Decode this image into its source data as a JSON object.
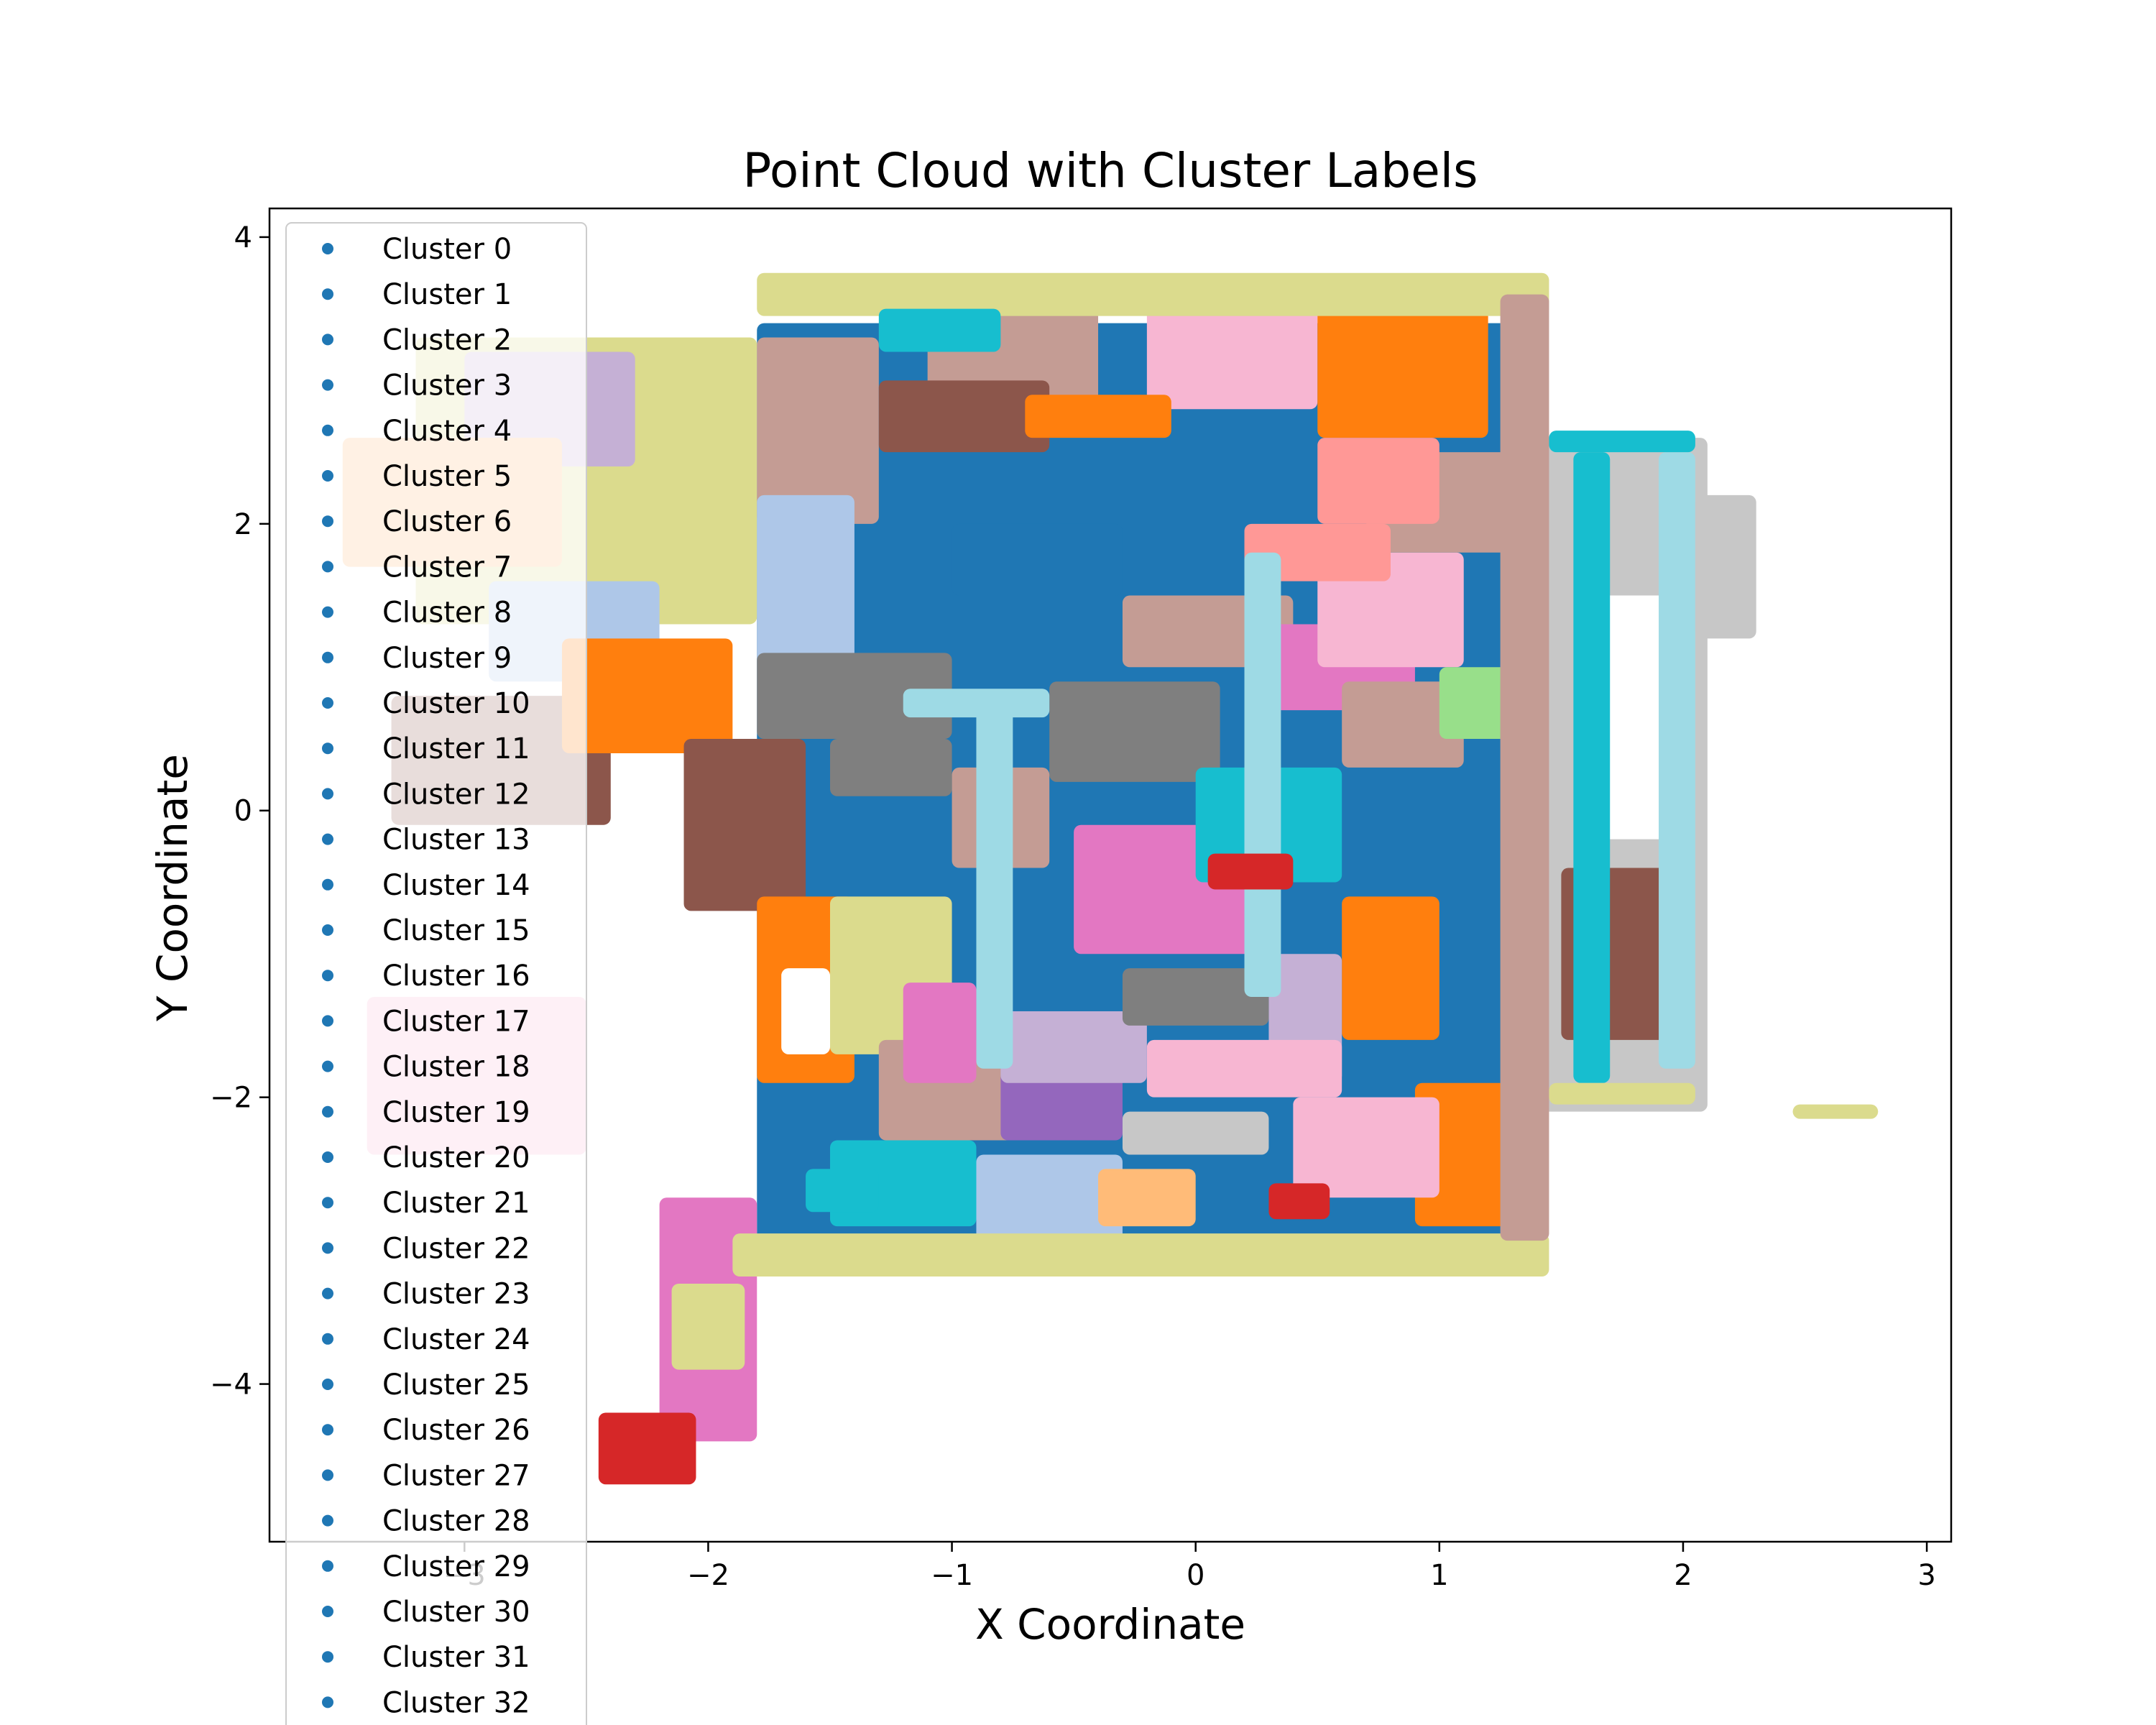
{
  "chart_data": {
    "type": "scatter",
    "title": "Point Cloud with Cluster Labels",
    "xlabel": "X Coordinate",
    "ylabel": "Y Coordinate",
    "xlim": [
      -3.8,
      3.1
    ],
    "ylim": [
      -5.1,
      4.2
    ],
    "xticks": [
      -3,
      -2,
      -1,
      0,
      1,
      2,
      3
    ],
    "yticks": [
      -4,
      -2,
      0,
      2,
      4
    ],
    "grid": false,
    "legend": {
      "placement": "top-left",
      "marker_color": "#1f77b4",
      "entries": [
        "Cluster 0",
        "Cluster 1",
        "Cluster 2",
        "Cluster 3",
        "Cluster 4",
        "Cluster 5",
        "Cluster 6",
        "Cluster 7",
        "Cluster 8",
        "Cluster 9",
        "Cluster 10",
        "Cluster 11",
        "Cluster 12",
        "Cluster 13",
        "Cluster 14",
        "Cluster 15",
        "Cluster 16",
        "Cluster 17",
        "Cluster 18",
        "Cluster 19",
        "Cluster 20",
        "Cluster 21",
        "Cluster 22",
        "Cluster 23",
        "Cluster 24",
        "Cluster 25",
        "Cluster 26",
        "Cluster 27",
        "Cluster 28",
        "Cluster 29",
        "Cluster 30",
        "Cluster 31",
        "Cluster 32"
      ]
    },
    "palette": [
      "#1f77b4",
      "#aec7e8",
      "#ff7f0e",
      "#ffbb78",
      "#2ca02c",
      "#98df8a",
      "#d62728",
      "#ff9896",
      "#9467bd",
      "#c5b0d5",
      "#8c564b",
      "#c49c94",
      "#e377c2",
      "#f7b6d2",
      "#7f7f7f",
      "#c7c7c7",
      "#bcbd22",
      "#dbdb8d",
      "#17becf",
      "#9edae5"
    ],
    "regions": [
      {
        "shape": "rect",
        "x": [
          -1.8,
          1.4
        ],
        "y": [
          -3.1,
          3.4
        ],
        "color": "#1f77b4"
      },
      {
        "shape": "rect",
        "x": [
          -3.2,
          -1.8
        ],
        "y": [
          1.3,
          3.3
        ],
        "color": "#dbdb8d"
      },
      {
        "shape": "rect",
        "x": [
          -3.0,
          -2.3
        ],
        "y": [
          2.4,
          3.2
        ],
        "color": "#c5b0d5"
      },
      {
        "shape": "rect",
        "x": [
          -3.5,
          -2.6
        ],
        "y": [
          1.7,
          2.6
        ],
        "color": "#ffbb78"
      },
      {
        "shape": "rect",
        "x": [
          -2.9,
          -2.2
        ],
        "y": [
          0.9,
          1.6
        ],
        "color": "#aec7e8"
      },
      {
        "shape": "rect",
        "x": [
          -3.3,
          -2.4
        ],
        "y": [
          -0.1,
          0.8
        ],
        "color": "#8c564b"
      },
      {
        "shape": "rect",
        "x": [
          -2.6,
          -1.9
        ],
        "y": [
          0.4,
          1.2
        ],
        "color": "#ff7f0e"
      },
      {
        "shape": "rect",
        "x": [
          -3.4,
          -2.5
        ],
        "y": [
          -2.4,
          -1.3
        ],
        "color": "#f7b6d2"
      },
      {
        "shape": "rect",
        "x": [
          -2.2,
          -1.8
        ],
        "y": [
          -4.4,
          -2.7
        ],
        "color": "#e377c2"
      },
      {
        "shape": "rect",
        "x": [
          -2.15,
          -1.85
        ],
        "y": [
          -3.9,
          -3.3
        ],
        "color": "#dbdb8d"
      },
      {
        "shape": "rect",
        "x": [
          -2.45,
          -2.05
        ],
        "y": [
          -4.7,
          -4.2
        ],
        "color": "#d62728"
      },
      {
        "shape": "rect",
        "x": [
          1.4,
          2.1
        ],
        "y": [
          -2.1,
          2.6
        ],
        "color": "#c7c7c7"
      },
      {
        "shape": "rect",
        "x": [
          1.5,
          2.0
        ],
        "y": [
          -1.6,
          -0.4
        ],
        "color": "#8c564b"
      },
      {
        "shape": "rect",
        "x": [
          1.6,
          2.0
        ],
        "y": [
          0.4,
          1.5
        ],
        "color": "#ffffff"
      },
      {
        "shape": "rect",
        "x": [
          1.6,
          2.0
        ],
        "y": [
          -0.2,
          0.6
        ],
        "color": "#ffffff"
      },
      {
        "shape": "rect",
        "x": [
          2.45,
          2.8
        ],
        "y": [
          -2.15,
          -2.05
        ],
        "color": "#dbdb8d"
      },
      {
        "shape": "rect",
        "x": [
          -1.1,
          -0.4
        ],
        "y": [
          2.8,
          3.5
        ],
        "color": "#c49c94"
      },
      {
        "shape": "rect",
        "x": [
          -0.2,
          0.5
        ],
        "y": [
          2.8,
          3.5
        ],
        "color": "#f7b6d2"
      },
      {
        "shape": "rect",
        "x": [
          0.5,
          1.2
        ],
        "y": [
          2.6,
          3.5
        ],
        "color": "#ff7f0e"
      },
      {
        "shape": "rect",
        "x": [
          -1.8,
          -1.3
        ],
        "y": [
          2.0,
          3.3
        ],
        "color": "#c49c94"
      },
      {
        "shape": "rect",
        "x": [
          -1.8,
          -1.4
        ],
        "y": [
          1.0,
          2.2
        ],
        "color": "#aec7e8"
      },
      {
        "shape": "rect",
        "x": [
          -1.8,
          -1.0
        ],
        "y": [
          0.5,
          1.1
        ],
        "color": "#7f7f7f"
      },
      {
        "shape": "rect",
        "x": [
          -2.1,
          -1.6
        ],
        "y": [
          -0.7,
          0.5
        ],
        "color": "#8c564b"
      },
      {
        "shape": "rect",
        "x": [
          -1.8,
          -1.4
        ],
        "y": [
          -1.9,
          -0.6
        ],
        "color": "#ff7f0e"
      },
      {
        "shape": "rect",
        "x": [
          -1.5,
          -1.0
        ],
        "y": [
          -1.7,
          -0.6
        ],
        "color": "#dbdb8d"
      },
      {
        "shape": "rect",
        "x": [
          -1.3,
          -0.7
        ],
        "y": [
          -2.3,
          -1.6
        ],
        "color": "#c49c94"
      },
      {
        "shape": "rect",
        "x": [
          -1.5,
          -0.9
        ],
        "y": [
          -2.9,
          -2.3
        ],
        "color": "#17becf"
      },
      {
        "shape": "rect",
        "x": [
          -0.9,
          -0.3
        ],
        "y": [
          -3.0,
          -2.4
        ],
        "color": "#aec7e8"
      },
      {
        "shape": "rect",
        "x": [
          -0.8,
          -0.3
        ],
        "y": [
          -2.3,
          -1.8
        ],
        "color": "#9467bd"
      },
      {
        "shape": "rect",
        "x": [
          -0.5,
          0.3
        ],
        "y": [
          -1.0,
          -0.1
        ],
        "color": "#e377c2"
      },
      {
        "shape": "rect",
        "x": [
          -0.6,
          0.1
        ],
        "y": [
          0.2,
          0.9
        ],
        "color": "#7f7f7f"
      },
      {
        "shape": "rect",
        "x": [
          -0.3,
          0.4
        ],
        "y": [
          1.0,
          1.5
        ],
        "color": "#c49c94"
      },
      {
        "shape": "rect",
        "x": [
          0.0,
          0.6
        ],
        "y": [
          -0.5,
          0.3
        ],
        "color": "#17becf"
      },
      {
        "shape": "rect",
        "x": [
          0.3,
          0.9
        ],
        "y": [
          0.7,
          1.3
        ],
        "color": "#e377c2"
      },
      {
        "shape": "rect",
        "x": [
          0.5,
          1.1
        ],
        "y": [
          1.0,
          1.8
        ],
        "color": "#f7b6d2"
      },
      {
        "shape": "rect",
        "x": [
          0.7,
          1.3
        ],
        "y": [
          1.8,
          2.5
        ],
        "color": "#c49c94"
      },
      {
        "shape": "rect",
        "x": [
          0.5,
          1.0
        ],
        "y": [
          2.0,
          2.6
        ],
        "color": "#ff9896"
      },
      {
        "shape": "rect",
        "x": [
          0.6,
          1.1
        ],
        "y": [
          0.3,
          0.9
        ],
        "color": "#c49c94"
      },
      {
        "shape": "rect",
        "x": [
          1.0,
          1.3
        ],
        "y": [
          0.5,
          1.0
        ],
        "color": "#98df8a"
      },
      {
        "shape": "rect",
        "x": [
          0.6,
          1.0
        ],
        "y": [
          -1.6,
          -0.6
        ],
        "color": "#ff7f0e"
      },
      {
        "shape": "rect",
        "x": [
          0.3,
          0.6
        ],
        "y": [
          -1.9,
          -1.0
        ],
        "color": "#c5b0d5"
      },
      {
        "shape": "rect",
        "x": [
          0.9,
          1.3
        ],
        "y": [
          -2.9,
          -1.9
        ],
        "color": "#ff7f0e"
      },
      {
        "shape": "rect",
        "x": [
          0.4,
          1.0
        ],
        "y": [
          -2.7,
          -2.0
        ],
        "color": "#f7b6d2"
      },
      {
        "shape": "rect",
        "x": [
          -0.2,
          0.6
        ],
        "y": [
          -2.0,
          -1.6
        ],
        "color": "#f7b6d2"
      },
      {
        "shape": "rect",
        "x": [
          -0.4,
          0.0
        ],
        "y": [
          -2.9,
          -2.5
        ],
        "color": "#ffbb78"
      },
      {
        "shape": "rect",
        "x": [
          -1.0,
          -0.3
        ],
        "y": [
          1.5,
          2.0
        ],
        "color": "#1f77b4"
      },
      {
        "shape": "rect",
        "x": [
          -1.3,
          -0.6
        ],
        "y": [
          2.5,
          3.0
        ],
        "color": "#8c564b"
      },
      {
        "shape": "rect",
        "x": [
          0.2,
          0.8
        ],
        "y": [
          1.6,
          2.0
        ],
        "color": "#ff9896"
      },
      {
        "shape": "rect",
        "x": [
          -1.0,
          -0.6
        ],
        "y": [
          -0.4,
          0.3
        ],
        "color": "#c49c94"
      },
      {
        "shape": "rect",
        "x": [
          -0.8,
          -0.2
        ],
        "y": [
          -1.9,
          -1.4
        ],
        "color": "#c5b0d5"
      },
      {
        "shape": "rect",
        "x": [
          -0.3,
          0.3
        ],
        "y": [
          -1.5,
          -1.1
        ],
        "color": "#7f7f7f"
      },
      {
        "shape": "rect",
        "x": [
          -1.5,
          -1.0
        ],
        "y": [
          0.1,
          0.5
        ],
        "color": "#7f7f7f"
      },
      {
        "shape": "rect",
        "x": [
          -1.9,
          1.45
        ],
        "y": [
          -3.25,
          -2.95
        ],
        "color": "#dbdb8d"
      },
      {
        "shape": "rect",
        "x": [
          -1.8,
          1.45
        ],
        "y": [
          3.45,
          3.75
        ],
        "color": "#dbdb8d"
      },
      {
        "shape": "rect",
        "x": [
          1.25,
          1.45
        ],
        "y": [
          -3.0,
          3.6
        ],
        "color": "#c49c94"
      },
      {
        "shape": "rect",
        "x": [
          -1.3,
          -0.8
        ],
        "y": [
          3.2,
          3.5
        ],
        "color": "#17becf"
      },
      {
        "shape": "rect",
        "x": [
          -0.7,
          -0.1
        ],
        "y": [
          2.6,
          2.9
        ],
        "color": "#ff7f0e"
      },
      {
        "shape": "rect",
        "x": [
          -1.2,
          -0.6
        ],
        "y": [
          0.65,
          0.85
        ],
        "color": "#9edae5"
      },
      {
        "shape": "rect",
        "x": [
          -0.9,
          -0.75
        ],
        "y": [
          -1.8,
          0.7
        ],
        "color": "#9edae5"
      },
      {
        "shape": "rect",
        "x": [
          0.2,
          0.35
        ],
        "y": [
          -1.3,
          1.8
        ],
        "color": "#9edae5"
      },
      {
        "shape": "rect",
        "x": [
          1.55,
          1.7
        ],
        "y": [
          -1.9,
          2.5
        ],
        "color": "#17becf"
      },
      {
        "shape": "rect",
        "x": [
          1.9,
          2.05
        ],
        "y": [
          -1.8,
          2.5
        ],
        "color": "#9edae5"
      },
      {
        "shape": "rect",
        "x": [
          1.45,
          2.05
        ],
        "y": [
          2.5,
          2.65
        ],
        "color": "#17becf"
      },
      {
        "shape": "rect",
        "x": [
          1.45,
          2.05
        ],
        "y": [
          -2.05,
          -1.9
        ],
        "color": "#dbdb8d"
      },
      {
        "shape": "rect",
        "x": [
          2.05,
          2.3
        ],
        "y": [
          1.2,
          2.2
        ],
        "color": "#c7c7c7"
      },
      {
        "shape": "rect",
        "x": [
          -0.3,
          0.3
        ],
        "y": [
          -2.4,
          -2.1
        ],
        "color": "#c7c7c7"
      },
      {
        "shape": "rect",
        "x": [
          -1.6,
          -1.3
        ],
        "y": [
          -2.8,
          -2.5
        ],
        "color": "#17becf"
      },
      {
        "shape": "rect",
        "x": [
          0.05,
          0.4
        ],
        "y": [
          -0.55,
          -0.3
        ],
        "color": "#d62728"
      },
      {
        "shape": "rect",
        "x": [
          0.3,
          0.55
        ],
        "y": [
          -2.85,
          -2.6
        ],
        "color": "#d62728"
      },
      {
        "shape": "rect",
        "x": [
          -1.2,
          -0.9
        ],
        "y": [
          -1.9,
          -1.2
        ],
        "color": "#e377c2"
      },
      {
        "shape": "rect",
        "x": [
          -1.7,
          -1.5
        ],
        "y": [
          -1.7,
          -1.1
        ],
        "color": "#ffffff"
      }
    ]
  }
}
